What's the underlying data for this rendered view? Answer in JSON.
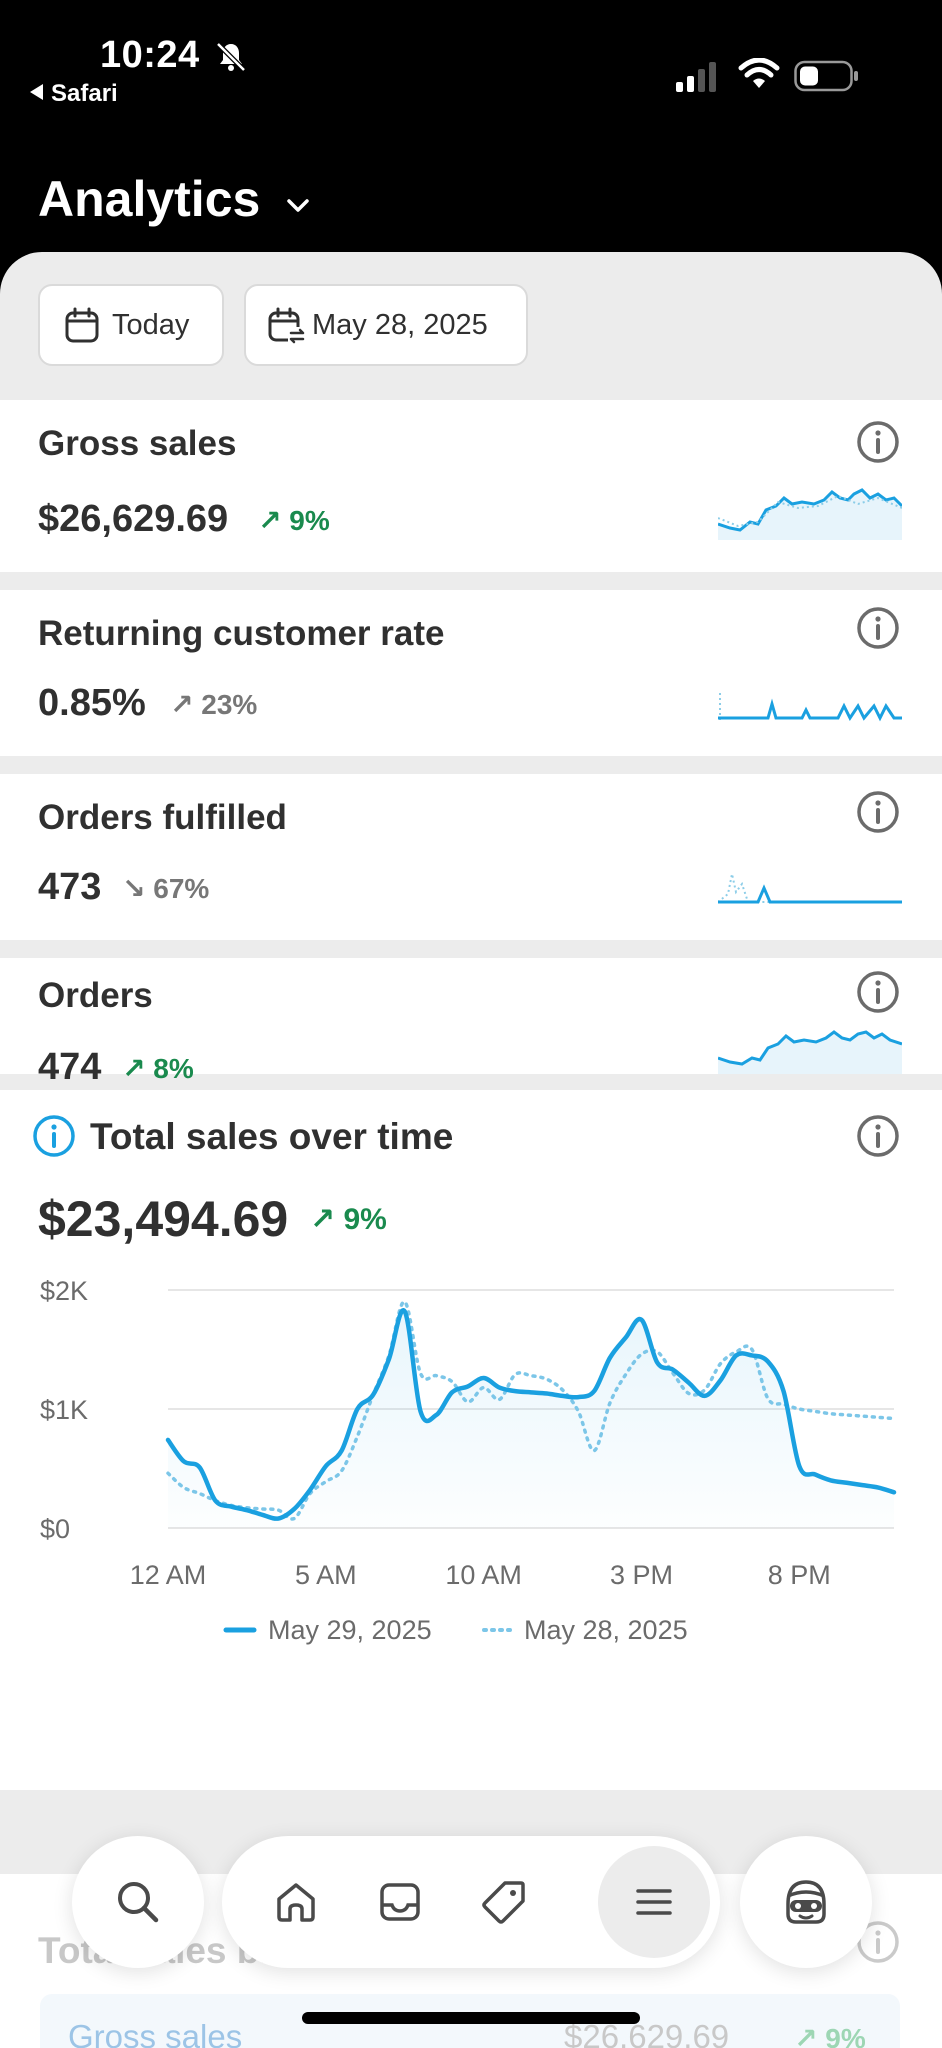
{
  "status_bar": {
    "time": "10:24",
    "back_app": "Safari"
  },
  "header": {
    "title": "Analytics"
  },
  "filters": {
    "today_label": "Today",
    "date_label": "May 28, 2025"
  },
  "metrics": [
    {
      "title": "Gross sales",
      "value": "$26,629.69",
      "delta": "9%",
      "direction": "up",
      "tone": "positive"
    },
    {
      "title": "Returning customer rate",
      "value": "0.85%",
      "delta": "23%",
      "direction": "up",
      "tone": "neutral"
    },
    {
      "title": "Orders fulfilled",
      "value": "473",
      "delta": "67%",
      "direction": "down",
      "tone": "neutral"
    },
    {
      "title": "Orders",
      "value": "474",
      "delta": "8%",
      "direction": "up",
      "tone": "positive"
    }
  ],
  "total_sales": {
    "title": "Total sales over time",
    "value": "$23,494.69",
    "delta": "9%"
  },
  "chart_data": {
    "type": "line",
    "title": "Total sales over time",
    "y_ticks": [
      "$2K",
      "$1K",
      "$0"
    ],
    "x_ticks": [
      "12 AM",
      "5 AM",
      "10 AM",
      "3 PM",
      "8 PM"
    ],
    "ylim": [
      0,
      2000
    ],
    "x_hours": [
      0,
      0.5,
      1,
      1.5,
      2,
      2.5,
      3,
      3.5,
      4,
      4.5,
      5,
      5.5,
      6,
      6.5,
      7,
      7.5,
      8,
      8.5,
      9,
      9.5,
      10,
      10.5,
      11,
      11.5,
      12,
      12.5,
      13,
      13.5,
      14,
      14.5,
      15,
      15.5,
      16,
      16.5,
      17,
      17.5,
      18,
      18.5,
      19,
      19.5,
      20,
      20.5,
      21,
      21.5,
      22,
      22.5,
      23
    ],
    "series": [
      {
        "name": "May 29, 2025",
        "style": "solid",
        "values": [
          740,
          560,
          510,
          230,
          180,
          150,
          110,
          80,
          160,
          320,
          520,
          650,
          1000,
          1120,
          1420,
          1820,
          980,
          950,
          1140,
          1190,
          1260,
          1180,
          1150,
          1140,
          1130,
          1110,
          1100,
          1150,
          1430,
          1600,
          1750,
          1390,
          1330,
          1220,
          1110,
          1240,
          1450,
          1450,
          1400,
          1150,
          520,
          450,
          400,
          380,
          360,
          340,
          300
        ]
      },
      {
        "name": "May 28, 2025",
        "style": "dotted",
        "values": [
          460,
          340,
          290,
          230,
          190,
          170,
          160,
          150,
          80,
          290,
          390,
          480,
          770,
          1120,
          1450,
          1900,
          1300,
          1280,
          1230,
          1060,
          1180,
          1080,
          1290,
          1280,
          1250,
          1160,
          980,
          650,
          1050,
          1290,
          1460,
          1480,
          1300,
          1130,
          1160,
          1380,
          1480,
          1500,
          1090,
          1040,
          1000,
          980,
          960,
          950,
          940,
          930,
          920
        ]
      }
    ],
    "legend_position": "bottom"
  },
  "next_card": {
    "title": "Total sales breakdown",
    "row_label": "Gross sales",
    "row_value": "$26,629.69",
    "row_delta": "9%"
  },
  "colors": {
    "accent": "#1aa0e0",
    "positive": "#1a8a4e",
    "text": "#303030"
  }
}
